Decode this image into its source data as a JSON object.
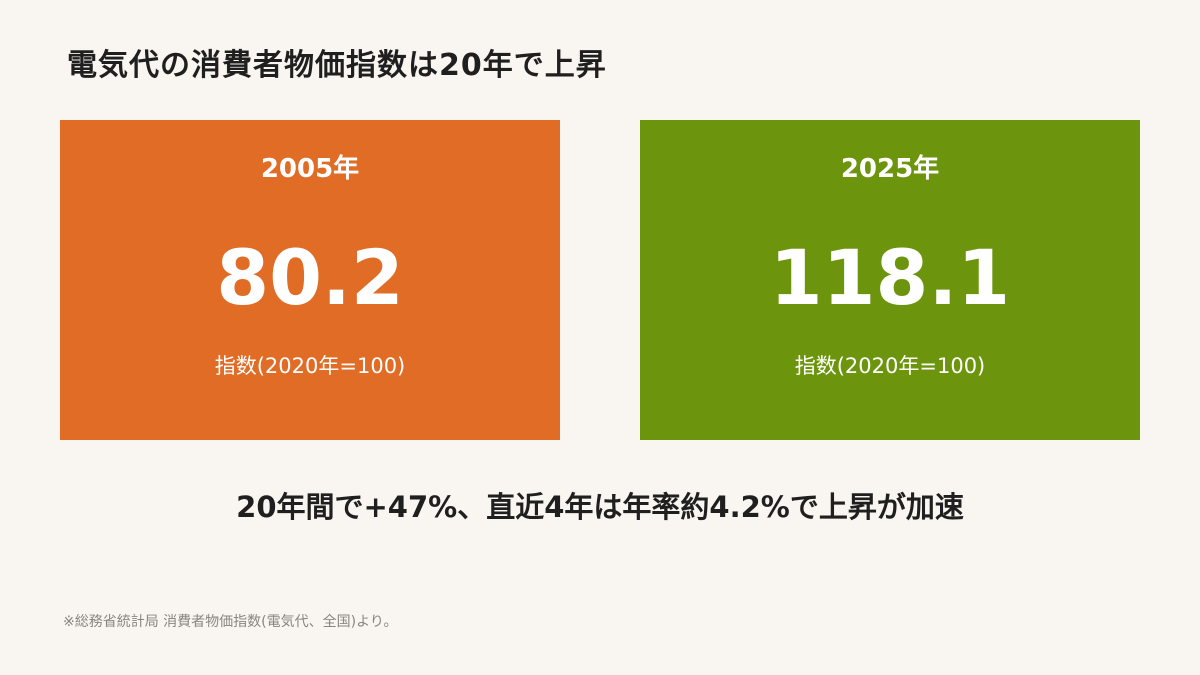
{
  "title": "電気代の消費者物価指数は20年で上昇",
  "cards": [
    {
      "year": "2005年",
      "value": "80.2",
      "unit": "指数(2020年=100)",
      "color": "#e06c26"
    },
    {
      "year": "2025年",
      "value": "118.1",
      "unit": "指数(2020年=100)",
      "color": "#6c950d"
    }
  ],
  "summary": "20年間で+47%、直近4年は年率約4.2%で上昇が加速",
  "source": "※総務省統計局 消費者物価指数(電気代、全国)より。",
  "colors": {
    "background": "#f9f5f0",
    "text": "#1f1f1f",
    "muted": "#8a8580"
  }
}
